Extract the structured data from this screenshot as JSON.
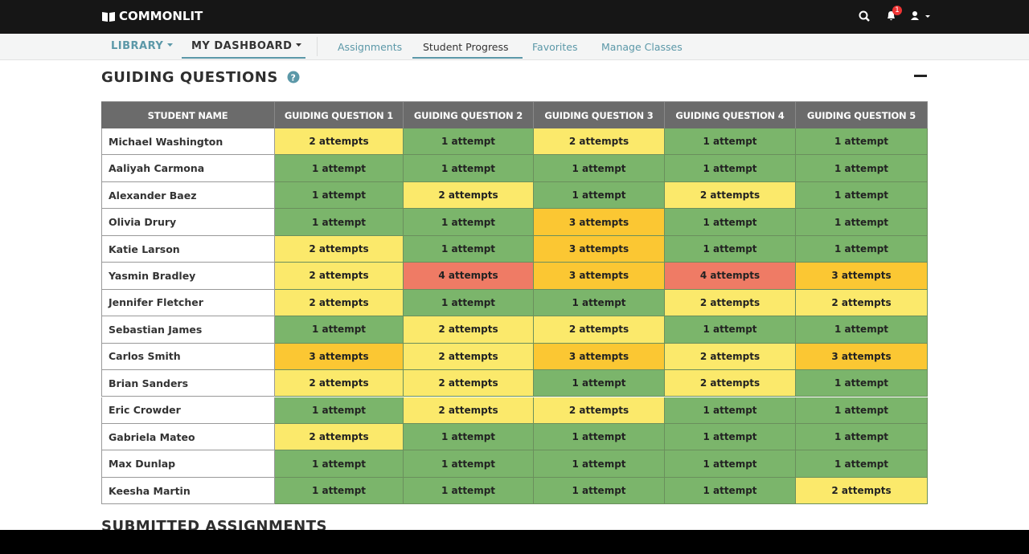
{
  "topbar": {
    "brand": "COMMONLIT",
    "notification_count": "1"
  },
  "subnav": {
    "primary": [
      "LIBRARY",
      "MY DASHBOARD"
    ],
    "secondary": [
      "Assignments",
      "Student Progress",
      "Favorites",
      "Manage Classes"
    ]
  },
  "section": {
    "title": "GUIDING QUESTIONS"
  },
  "table": {
    "header": [
      "STUDENT NAME",
      "GUIDING QUESTION 1",
      "GUIDING QUESTION 2",
      "GUIDING QUESTION 3",
      "GUIDING QUESTION 4",
      "GUIDING QUESTION 5"
    ],
    "rows": [
      {
        "name": "Michael Washington",
        "cells": [
          {
            "text": "2 attempts",
            "color": "#fbe96b"
          },
          {
            "text": "1 attempt",
            "color": "#7bb56b"
          },
          {
            "text": "2 attempts",
            "color": "#fbe96b"
          },
          {
            "text": "1 attempt",
            "color": "#7bb56b"
          },
          {
            "text": "1 attempt",
            "color": "#7bb56b"
          }
        ]
      },
      {
        "name": "Aaliyah Carmona",
        "cells": [
          {
            "text": "1 attempt",
            "color": "#7bb56b"
          },
          {
            "text": "1 attempt",
            "color": "#7bb56b"
          },
          {
            "text": "1 attempt",
            "color": "#7bb56b"
          },
          {
            "text": "1 attempt",
            "color": "#7bb56b"
          },
          {
            "text": "1 attempt",
            "color": "#7bb56b"
          }
        ]
      },
      {
        "name": "Alexander Baez",
        "cells": [
          {
            "text": "1 attempt",
            "color": "#7bb56b"
          },
          {
            "text": "2 attempts",
            "color": "#fbe96b"
          },
          {
            "text": "1 attempt",
            "color": "#7bb56b"
          },
          {
            "text": "2 attempts",
            "color": "#fbe96b"
          },
          {
            "text": "1 attempt",
            "color": "#7bb56b"
          }
        ]
      },
      {
        "name": "Olivia Drury",
        "cells": [
          {
            "text": "1 attempt",
            "color": "#7bb56b"
          },
          {
            "text": "1 attempt",
            "color": "#7bb56b"
          },
          {
            "text": "3 attempts",
            "color": "#fbc733"
          },
          {
            "text": "1 attempt",
            "color": "#7bb56b"
          },
          {
            "text": "1 attempt",
            "color": "#7bb56b"
          }
        ]
      },
      {
        "name": "Katie Larson",
        "cells": [
          {
            "text": "2 attempts",
            "color": "#fbe96b"
          },
          {
            "text": "1 attempt",
            "color": "#7bb56b"
          },
          {
            "text": "3 attempts",
            "color": "#fbc733"
          },
          {
            "text": "1 attempt",
            "color": "#7bb56b"
          },
          {
            "text": "1 attempt",
            "color": "#7bb56b"
          }
        ]
      },
      {
        "name": "Yasmin Bradley",
        "cells": [
          {
            "text": "2 attempts",
            "color": "#fbe96b"
          },
          {
            "text": "4 attempts",
            "color": "#ef7b65"
          },
          {
            "text": "3 attempts",
            "color": "#fbc733"
          },
          {
            "text": "4 attempts",
            "color": "#ef7b65"
          },
          {
            "text": "3 attempts",
            "color": "#fbc733"
          }
        ]
      },
      {
        "name": "Jennifer Fletcher",
        "cells": [
          {
            "text": "2 attempts",
            "color": "#fbe96b"
          },
          {
            "text": "1 attempt",
            "color": "#7bb56b"
          },
          {
            "text": "1 attempt",
            "color": "#7bb56b"
          },
          {
            "text": "2 attempts",
            "color": "#fbe96b"
          },
          {
            "text": "2 attempts",
            "color": "#fbe96b"
          }
        ]
      },
      {
        "name": "Sebastian James",
        "cells": [
          {
            "text": "1 attempt",
            "color": "#7bb56b"
          },
          {
            "text": "2 attempts",
            "color": "#fbe96b"
          },
          {
            "text": "2 attempts",
            "color": "#fbe96b"
          },
          {
            "text": "1 attempt",
            "color": "#7bb56b"
          },
          {
            "text": "1 attempt",
            "color": "#7bb56b"
          }
        ]
      },
      {
        "name": "Carlos Smith",
        "cells": [
          {
            "text": "3 attempts",
            "color": "#fbc733"
          },
          {
            "text": "2 attempts",
            "color": "#fbe96b"
          },
          {
            "text": "3 attempts",
            "color": "#fbc733"
          },
          {
            "text": "2 attempts",
            "color": "#fbe96b"
          },
          {
            "text": "3 attempts",
            "color": "#fbc733"
          }
        ]
      },
      {
        "name": "Brian Sanders",
        "cells": [
          {
            "text": "2 attempts",
            "color": "#fbe96b"
          },
          {
            "text": "2 attempts",
            "color": "#fbe96b"
          },
          {
            "text": "1 attempt",
            "color": "#7bb56b"
          },
          {
            "text": "2 attempts",
            "color": "#fbe96b"
          },
          {
            "text": "1 attempt",
            "color": "#7bb56b"
          }
        ]
      },
      {
        "name": "Eric Crowder",
        "cells": [
          {
            "text": "1 attempt",
            "color": "#7bb56b"
          },
          {
            "text": "2 attempts",
            "color": "#fbe96b"
          },
          {
            "text": "2 attempts",
            "color": "#fbe96b"
          },
          {
            "text": "1 attempt",
            "color": "#7bb56b"
          },
          {
            "text": "1 attempt",
            "color": "#7bb56b"
          }
        ]
      },
      {
        "name": "Gabriela Mateo",
        "cells": [
          {
            "text": "2 attempts",
            "color": "#fbe96b"
          },
          {
            "text": "1 attempt",
            "color": "#7bb56b"
          },
          {
            "text": "1 attempt",
            "color": "#7bb56b"
          },
          {
            "text": "1 attempt",
            "color": "#7bb56b"
          },
          {
            "text": "1 attempt",
            "color": "#7bb56b"
          }
        ]
      },
      {
        "name": "Max Dunlap",
        "cells": [
          {
            "text": "1 attempt",
            "color": "#7bb56b"
          },
          {
            "text": "1 attempt",
            "color": "#7bb56b"
          },
          {
            "text": "1 attempt",
            "color": "#7bb56b"
          },
          {
            "text": "1 attempt",
            "color": "#7bb56b"
          },
          {
            "text": "1 attempt",
            "color": "#7bb56b"
          }
        ]
      },
      {
        "name": "Keesha Martin",
        "cells": [
          {
            "text": "1 attempt",
            "color": "#7bb56b"
          },
          {
            "text": "1 attempt",
            "color": "#7bb56b"
          },
          {
            "text": "1 attempt",
            "color": "#7bb56b"
          },
          {
            "text": "1 attempt",
            "color": "#7bb56b"
          },
          {
            "text": "2 attempts",
            "color": "#fbe96b"
          }
        ]
      }
    ]
  },
  "next_section": {
    "title": "SUBMITTED ASSIGNMENTS"
  }
}
